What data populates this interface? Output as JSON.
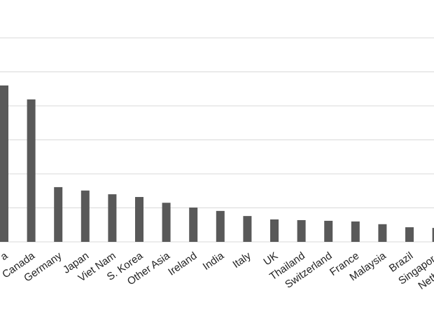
{
  "chart_data": {
    "type": "bar",
    "categories": [
      "a",
      "Canada",
      "Germany",
      "Japan",
      "Viet Nam",
      "S. Korea",
      "Other Asia",
      "Ireland",
      "India",
      "Italy",
      "UK",
      "Thailand",
      "Switzerland",
      "France",
      "Malaysia",
      "Brazil",
      "Singapore",
      "Netherlands"
    ],
    "values": [
      4.6,
      4.19,
      1.61,
      1.51,
      1.4,
      1.32,
      1.15,
      1.01,
      0.91,
      0.76,
      0.66,
      0.64,
      0.62,
      0.6,
      0.52,
      0.43,
      0.41,
      null
    ],
    "color": "#595959",
    "ylim": [
      0,
      7
    ],
    "yticks": [
      0,
      1,
      2,
      3,
      4,
      5,
      6
    ],
    "grid": true,
    "tick_labels": false
  }
}
